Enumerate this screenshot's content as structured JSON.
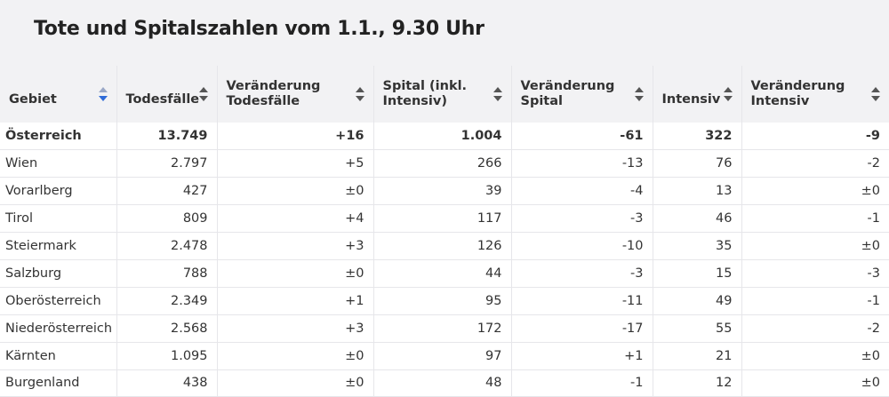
{
  "title": "Tote und Spitalszahlen vom 1.1., 9.30 Uhr",
  "columns": [
    {
      "l1": "Gebiet",
      "l2": ""
    },
    {
      "l1": "Todesfälle",
      "l2": ""
    },
    {
      "l1": "Veränderung",
      "l2": "Todesfälle"
    },
    {
      "l1": "Spital (inkl.",
      "l2": "Intensiv)"
    },
    {
      "l1": "Veränderung",
      "l2": "Spital"
    },
    {
      "l1": "Intensiv",
      "l2": ""
    },
    {
      "l1": "Veränderung",
      "l2": "Intensiv"
    }
  ],
  "rows": [
    [
      "Österreich",
      "13.749",
      "+16",
      "1.004",
      "-61",
      "322",
      "-9"
    ],
    [
      "Wien",
      "2.797",
      "+5",
      "266",
      "-13",
      "76",
      "-2"
    ],
    [
      "Vorarlberg",
      "427",
      "±0",
      "39",
      "-4",
      "13",
      "±0"
    ],
    [
      "Tirol",
      "809",
      "+4",
      "117",
      "-3",
      "46",
      "-1"
    ],
    [
      "Steiermark",
      "2.478",
      "+3",
      "126",
      "-10",
      "35",
      "±0"
    ],
    [
      "Salzburg",
      "788",
      "±0",
      "44",
      "-3",
      "15",
      "-3"
    ],
    [
      "Oberösterreich",
      "2.349",
      "+1",
      "95",
      "-11",
      "49",
      "-1"
    ],
    [
      "Niederösterreich",
      "2.568",
      "+3",
      "172",
      "-17",
      "55",
      "-2"
    ],
    [
      "Kärnten",
      "1.095",
      "±0",
      "97",
      "+1",
      "21",
      "±0"
    ],
    [
      "Burgenland",
      "438",
      "±0",
      "48",
      "-1",
      "12",
      "±0"
    ]
  ]
}
